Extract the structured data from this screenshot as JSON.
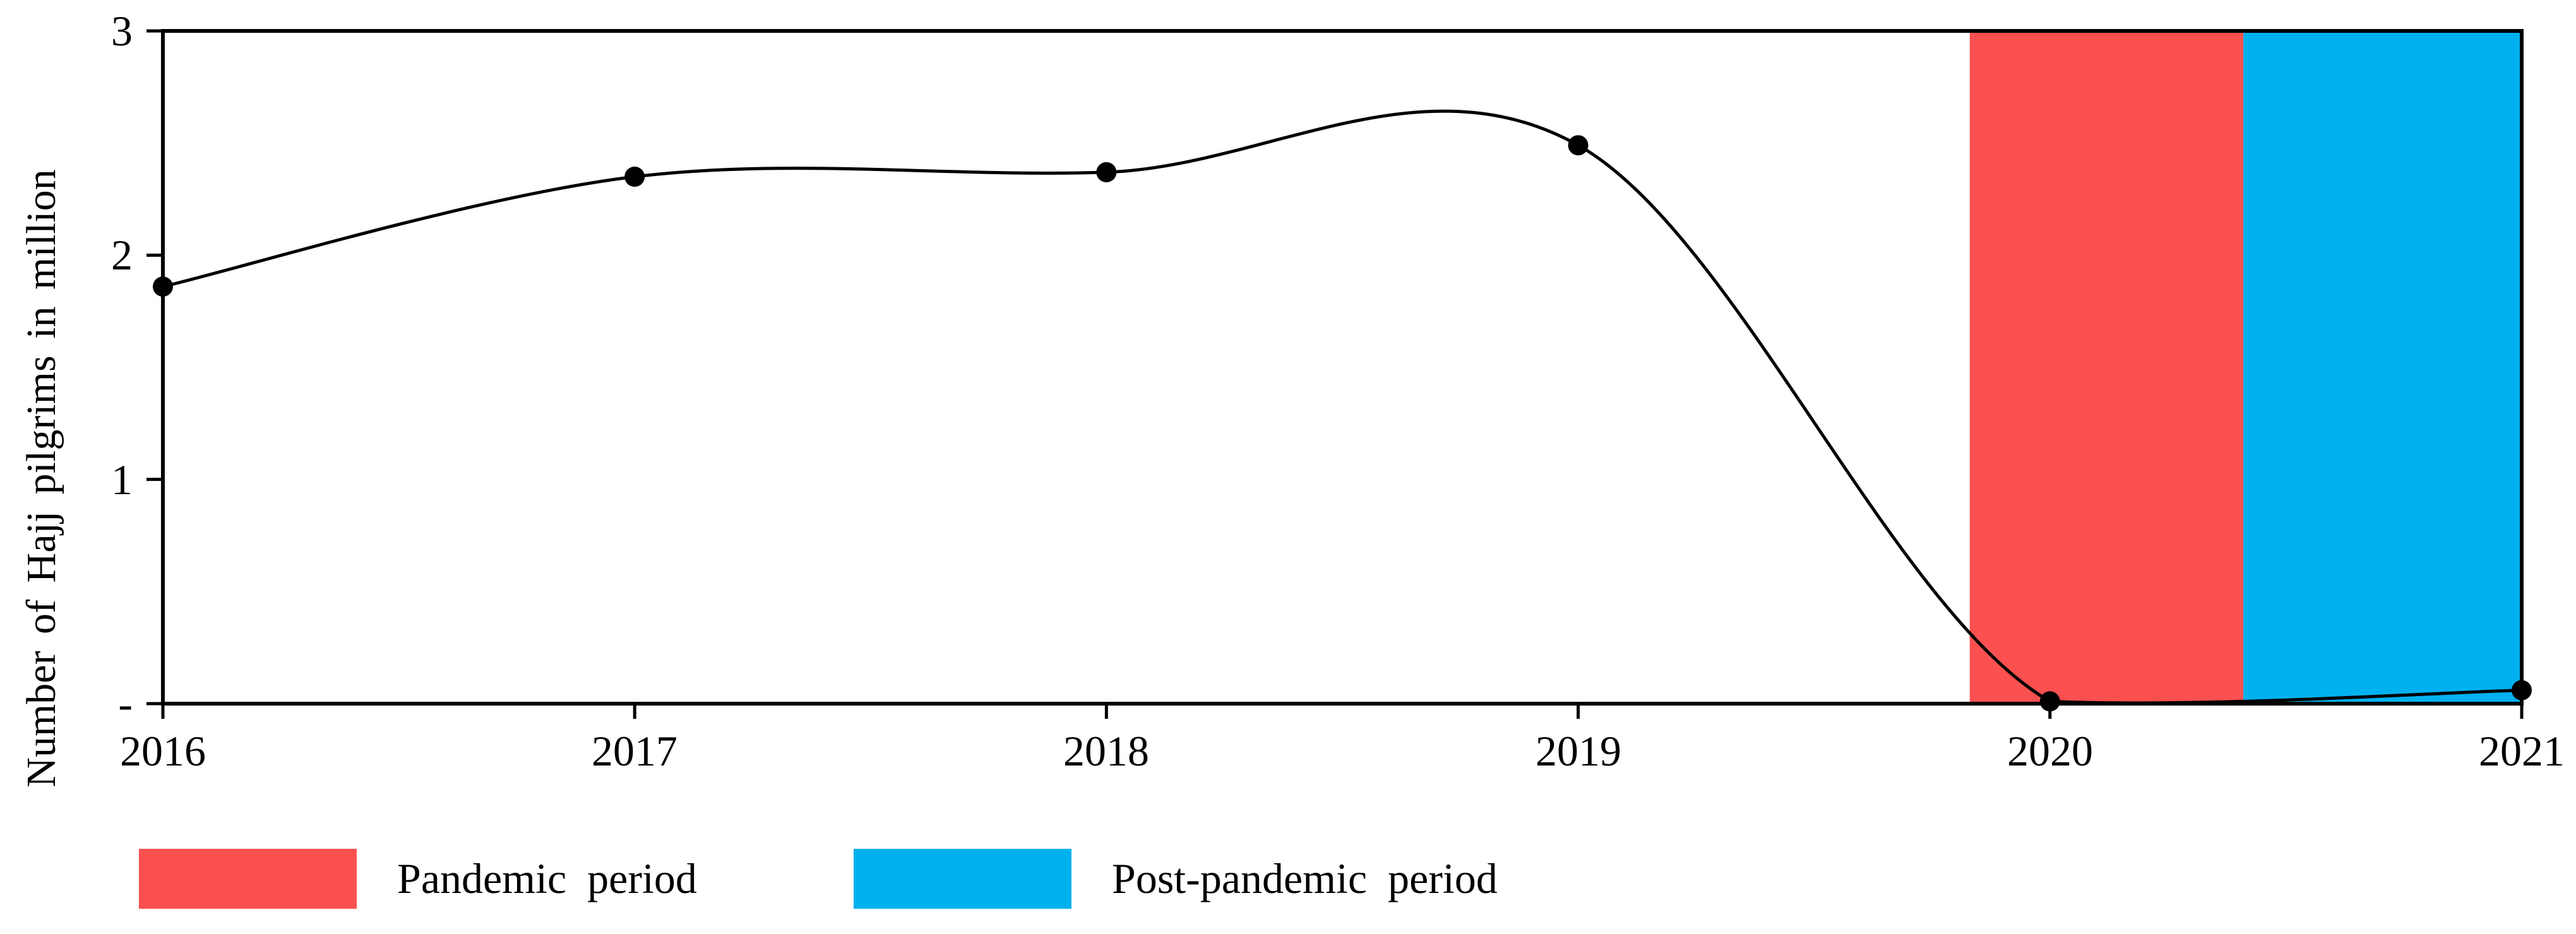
{
  "chart_data": {
    "type": "line",
    "title": "",
    "xlabel": "",
    "ylabel": "Number of Hajj pilgrims in million",
    "x": [
      2016,
      2017,
      2018,
      2019,
      2020,
      2021
    ],
    "x_ticklabels": [
      "2016",
      "2017",
      "2018",
      "2019",
      "2020",
      "2021"
    ],
    "values": [
      1.86,
      2.35,
      2.37,
      2.49,
      0.01,
      0.06
    ],
    "ylim": [
      0,
      3
    ],
    "y_ticks": [
      0,
      1,
      2,
      3
    ],
    "y_ticklabels_top_to_bottom": [
      "3",
      "2",
      "1",
      "-"
    ],
    "line_color": "#000000",
    "marker": "circle",
    "marker_color": "#000000",
    "grid": false,
    "line_style": "smooth",
    "legend_position": "bottom-left",
    "bands": [
      {
        "name": "Pandemic period",
        "color": "#FB5050",
        "x_start": 2019.83,
        "x_end": 2020.41
      },
      {
        "name": "Post-pandemic period",
        "color": "#00B1F0",
        "x_start": 2020.41,
        "x_end": 2021.0
      }
    ],
    "legend": [
      {
        "label": "Pandemic period",
        "color": "#FB5050"
      },
      {
        "label": "Post-pandemic period",
        "color": "#00B1F0"
      }
    ]
  }
}
